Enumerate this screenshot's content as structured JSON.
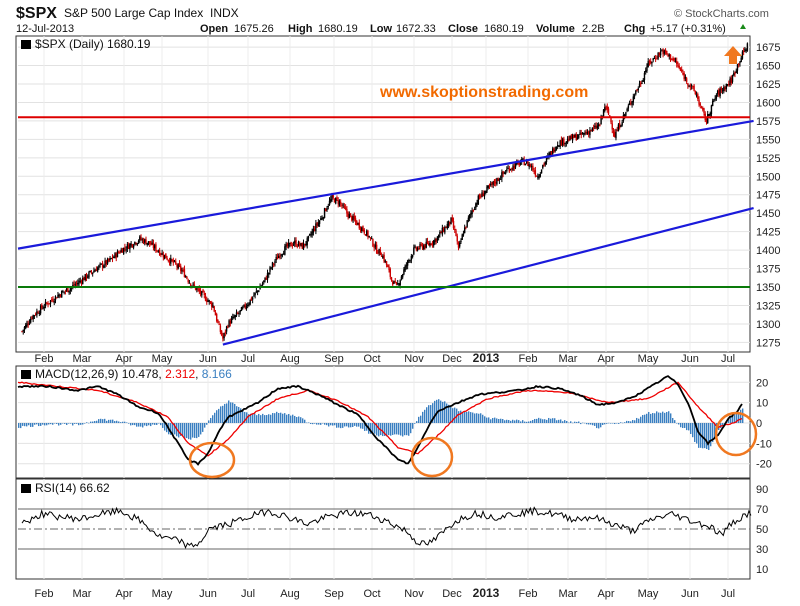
{
  "header": {
    "symbol": "$SPX",
    "name": "S&P 500 Large Cap Index",
    "exchange": "INDX",
    "brand": "© StockCharts.com",
    "date": "12-Jul-2013",
    "open_label": "Open",
    "open": "1675.26",
    "high_label": "High",
    "high": "1680.19",
    "low_label": "Low",
    "low": "1672.33",
    "close_label": "Close",
    "close": "1680.19",
    "volume_label": "Volume",
    "volume": "2.2B",
    "chg_label": "Chg",
    "chg": "+5.17 (+0.31%)"
  },
  "price_panel": {
    "legend": "$SPX (Daily) 1680.19",
    "watermark": "www.skoptionstrading.com"
  },
  "macd_panel": {
    "legend_prefix": "MACD(12,26,9)",
    "macd_value": "10.478",
    "signal_value": "2.312",
    "hist_value": "8.166"
  },
  "rsi_panel": {
    "legend": "RSI(14) 66.62"
  },
  "colors": {
    "candle_up": "#000000",
    "candle_down": "#cc0000",
    "trendline": "#1a1adb",
    "resistance": "#dd0000",
    "support": "#0a7a0a",
    "macd_line": "#000000",
    "signal_line": "#ee0000",
    "histogram": "#3a7fc1",
    "highlight": "#f07820"
  },
  "chart_data": [
    {
      "type": "candlestick",
      "title": "$SPX (Daily) 1680.19",
      "x_labels": [
        "Feb",
        "Mar",
        "Apr",
        "May",
        "Jun",
        "Jul",
        "Aug",
        "Sep",
        "Oct",
        "Nov",
        "Dec",
        "2013",
        "Feb",
        "Mar",
        "Apr",
        "May",
        "Jun",
        "Jul"
      ],
      "y_ticks": [
        1275,
        1300,
        1325,
        1350,
        1375,
        1400,
        1425,
        1450,
        1475,
        1500,
        1525,
        1550,
        1575,
        1600,
        1625,
        1650,
        1675
      ],
      "ylim": [
        1262,
        1690
      ],
      "close_path": [
        [
          0,
          1290
        ],
        [
          8,
          1310
        ],
        [
          18,
          1325
        ],
        [
          30,
          1340
        ],
        [
          40,
          1350
        ],
        [
          50,
          1362
        ],
        [
          60,
          1375
        ],
        [
          70,
          1385
        ],
        [
          80,
          1400
        ],
        [
          88,
          1408
        ],
        [
          95,
          1415
        ],
        [
          102,
          1410
        ],
        [
          108,
          1402
        ],
        [
          113,
          1395
        ],
        [
          118,
          1388
        ],
        [
          124,
          1380
        ],
        [
          130,
          1370
        ],
        [
          136,
          1355
        ],
        [
          142,
          1345
        ],
        [
          148,
          1335
        ],
        [
          154,
          1325
        ],
        [
          158,
          1300
        ],
        [
          162,
          1280
        ],
        [
          166,
          1300
        ],
        [
          172,
          1310
        ],
        [
          178,
          1320
        ],
        [
          184,
          1332
        ],
        [
          190,
          1345
        ],
        [
          196,
          1360
        ],
        [
          202,
          1380
        ],
        [
          208,
          1395
        ],
        [
          214,
          1405
        ],
        [
          220,
          1410
        ],
        [
          226,
          1405
        ],
        [
          230,
          1412
        ],
        [
          236,
          1430
        ],
        [
          242,
          1445
        ],
        [
          246,
          1460
        ],
        [
          250,
          1470
        ],
        [
          256,
          1465
        ],
        [
          262,
          1450
        ],
        [
          268,
          1440
        ],
        [
          274,
          1430
        ],
        [
          280,
          1418
        ],
        [
          286,
          1400
        ],
        [
          290,
          1395
        ],
        [
          294,
          1380
        ],
        [
          298,
          1360
        ],
        [
          302,
          1350
        ],
        [
          306,
          1365
        ],
        [
          310,
          1380
        ],
        [
          316,
          1400
        ],
        [
          322,
          1405
        ],
        [
          328,
          1408
        ],
        [
          334,
          1415
        ],
        [
          340,
          1428
        ],
        [
          346,
          1440
        ],
        [
          350,
          1420
        ],
        [
          352,
          1400
        ],
        [
          356,
          1425
        ],
        [
          362,
          1450
        ],
        [
          368,
          1470
        ],
        [
          374,
          1480
        ],
        [
          380,
          1490
        ],
        [
          386,
          1500
        ],
        [
          392,
          1510
        ],
        [
          398,
          1515
        ],
        [
          404,
          1520
        ],
        [
          410,
          1515
        ],
        [
          414,
          1505
        ],
        [
          416,
          1500
        ],
        [
          420,
          1515
        ],
        [
          426,
          1530
        ],
        [
          432,
          1545
        ],
        [
          438,
          1548
        ],
        [
          444,
          1552
        ],
        [
          450,
          1555
        ],
        [
          456,
          1560
        ],
        [
          462,
          1565
        ],
        [
          466,
          1570
        ],
        [
          470,
          1595
        ],
        [
          474,
          1580
        ],
        [
          478,
          1555
        ],
        [
          482,
          1570
        ],
        [
          488,
          1590
        ],
        [
          494,
          1612
        ],
        [
          500,
          1630
        ],
        [
          504,
          1650
        ],
        [
          510,
          1660
        ],
        [
          516,
          1670
        ],
        [
          520,
          1665
        ],
        [
          524,
          1660
        ],
        [
          528,
          1652
        ],
        [
          532,
          1640
        ],
        [
          536,
          1630
        ],
        [
          540,
          1620
        ],
        [
          544,
          1610
        ],
        [
          548,
          1590
        ],
        [
          552,
          1575
        ],
        [
          556,
          1595
        ],
        [
          560,
          1610
        ],
        [
          566,
          1620
        ],
        [
          572,
          1630
        ],
        [
          578,
          1655
        ],
        [
          582,
          1668
        ],
        [
          586,
          1680
        ]
      ],
      "lines": [
        {
          "name": "upper trendline",
          "from": [
            -8,
            1402
          ],
          "to": [
            590,
            1575
          ]
        },
        {
          "name": "lower trendline",
          "from": [
            162,
            1272
          ],
          "to": [
            590,
            1457
          ]
        },
        {
          "name": "resistance",
          "value": 1580
        },
        {
          "name": "support",
          "value": 1350
        }
      ]
    },
    {
      "type": "line",
      "title": "MACD(12,26,9) 10.478, 2.312, 8.166",
      "y_ticks": [
        -20,
        -10,
        0,
        10,
        20
      ],
      "ylim": [
        -27,
        28
      ],
      "series": [
        {
          "name": "MACD",
          "points": [
            [
              0,
              18
            ],
            [
              30,
              18
            ],
            [
              60,
              16
            ],
            [
              80,
              18
            ],
            [
              100,
              14
            ],
            [
              120,
              8
            ],
            [
              140,
              5
            ],
            [
              150,
              -2
            ],
            [
              160,
              -10
            ],
            [
              170,
              -18
            ],
            [
              180,
              -20
            ],
            [
              190,
              -15
            ],
            [
              200,
              -5
            ],
            [
              210,
              3
            ],
            [
              220,
              5
            ],
            [
              240,
              10
            ],
            [
              260,
              17
            ],
            [
              280,
              18
            ],
            [
              300,
              14
            ],
            [
              320,
              9
            ],
            [
              340,
              4
            ],
            [
              360,
              -8
            ],
            [
              380,
              -18
            ],
            [
              390,
              -20
            ],
            [
              400,
              -12
            ],
            [
              410,
              -2
            ],
            [
              420,
              6
            ],
            [
              440,
              10
            ],
            [
              460,
              14
            ],
            [
              480,
              15
            ],
            [
              500,
              16
            ],
            [
              520,
              18
            ],
            [
              540,
              17
            ],
            [
              560,
              14
            ],
            [
              580,
              9
            ],
            [
              600,
              10
            ],
            [
              620,
              14
            ],
            [
              640,
              20
            ],
            [
              650,
              23
            ],
            [
              660,
              19
            ],
            [
              670,
              10
            ],
            [
              680,
              -4
            ],
            [
              690,
              -10
            ],
            [
              700,
              -6
            ],
            [
              710,
              2
            ],
            [
              720,
              6
            ],
            [
              725,
              10.5
            ]
          ]
        },
        {
          "name": "Signal",
          "points": [
            [
              0,
              20
            ],
            [
              40,
              18
            ],
            [
              80,
              16
            ],
            [
              120,
              10
            ],
            [
              150,
              3
            ],
            [
              170,
              -10
            ],
            [
              190,
              -16
            ],
            [
              210,
              -8
            ],
            [
              230,
              3
            ],
            [
              260,
              12
            ],
            [
              290,
              16
            ],
            [
              320,
              11
            ],
            [
              350,
              3
            ],
            [
              380,
              -12
            ],
            [
              400,
              -15
            ],
            [
              420,
              -6
            ],
            [
              440,
              4
            ],
            [
              470,
              12
            ],
            [
              510,
              16
            ],
            [
              550,
              15
            ],
            [
              590,
              10
            ],
            [
              630,
              12
            ],
            [
              660,
              20
            ],
            [
              680,
              8
            ],
            [
              700,
              -2
            ],
            [
              715,
              0
            ],
            [
              725,
              2.3
            ]
          ]
        }
      ]
    },
    {
      "type": "line",
      "title": "RSI(14) 66.62",
      "y_ticks": [
        10,
        30,
        50,
        70,
        90
      ],
      "ylim": [
        0,
        100
      ],
      "reference_lines": [
        70,
        50,
        30
      ],
      "series": [
        {
          "name": "RSI",
          "points": [
            [
              0,
              55
            ],
            [
              20,
              65
            ],
            [
              40,
              62
            ],
            [
              60,
              60
            ],
            [
              80,
              65
            ],
            [
              100,
              68
            ],
            [
              120,
              58
            ],
            [
              140,
              42
            ],
            [
              160,
              38
            ],
            [
              170,
              32
            ],
            [
              180,
              36
            ],
            [
              190,
              50
            ],
            [
              210,
              55
            ],
            [
              230,
              62
            ],
            [
              250,
              68
            ],
            [
              270,
              62
            ],
            [
              290,
              55
            ],
            [
              310,
              62
            ],
            [
              330,
              66
            ],
            [
              350,
              65
            ],
            [
              370,
              58
            ],
            [
              390,
              48
            ],
            [
              400,
              38
            ],
            [
              410,
              34
            ],
            [
              420,
              40
            ],
            [
              440,
              58
            ],
            [
              460,
              66
            ],
            [
              480,
              62
            ],
            [
              500,
              65
            ],
            [
              520,
              68
            ],
            [
              540,
              65
            ],
            [
              560,
              60
            ],
            [
              580,
              62
            ],
            [
              600,
              55
            ],
            [
              620,
              48
            ],
            [
              640,
              60
            ],
            [
              660,
              65
            ],
            [
              680,
              58
            ],
            [
              700,
              52
            ],
            [
              710,
              44
            ],
            [
              720,
              55
            ],
            [
              730,
              62
            ],
            [
              740,
              66.6
            ]
          ]
        }
      ]
    }
  ]
}
